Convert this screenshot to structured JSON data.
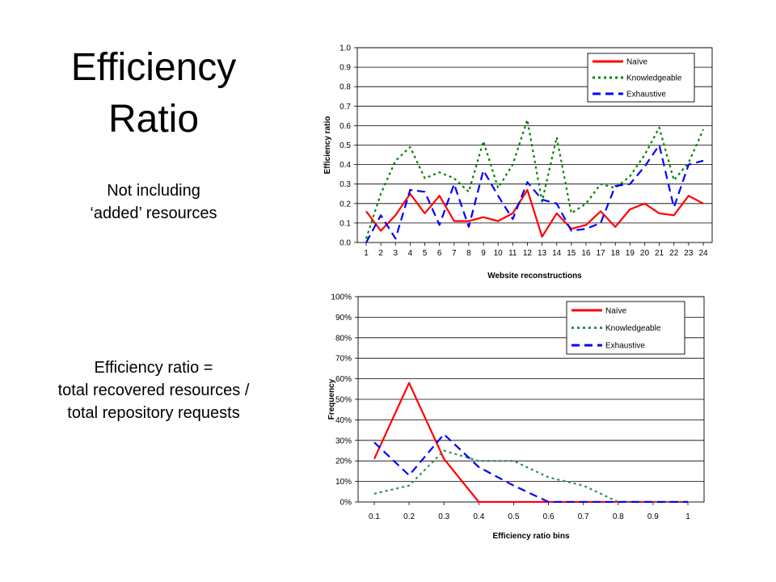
{
  "slide": {
    "title_lines": [
      "Efficiency",
      "Ratio"
    ],
    "note1_lines": [
      "Not including",
      "‘added’ resources"
    ],
    "note2_lines": [
      "Efficiency ratio =",
      "total recovered resources /",
      "total repository requests"
    ]
  },
  "chart_data": [
    {
      "type": "line",
      "title": "",
      "xlabel": "Website reconstructions",
      "ylabel": "Efficiency ratio",
      "categories": [
        "1",
        "2",
        "3",
        "4",
        "5",
        "6",
        "7",
        "8",
        "9",
        "10",
        "11",
        "12",
        "13",
        "14",
        "15",
        "16",
        "17",
        "18",
        "19",
        "20",
        "21",
        "22",
        "23",
        "24"
      ],
      "ylim": [
        0,
        1.0
      ],
      "yticks": [
        "0.0",
        "0.1",
        "0.2",
        "0.3",
        "0.4",
        "0.5",
        "0.6",
        "0.7",
        "0.8",
        "0.9",
        "1.0"
      ],
      "grid": true,
      "legend": "top-right",
      "series": [
        {
          "name": "Naïve",
          "color": "#ff0000",
          "dash": "solid",
          "values": [
            0.16,
            0.06,
            0.14,
            0.25,
            0.15,
            0.24,
            0.11,
            0.11,
            0.13,
            0.11,
            0.15,
            0.27,
            0.03,
            0.15,
            0.07,
            0.09,
            0.16,
            0.08,
            0.17,
            0.2,
            0.15,
            0.14,
            0.24,
            0.2
          ]
        },
        {
          "name": "Knowledgeable",
          "color": "#008000",
          "dash": "dot",
          "values": [
            0.02,
            0.25,
            0.42,
            0.49,
            0.33,
            0.36,
            0.33,
            0.26,
            0.52,
            0.28,
            0.4,
            0.63,
            0.21,
            0.54,
            0.15,
            0.2,
            0.3,
            0.28,
            0.34,
            0.45,
            0.59,
            0.32,
            0.41,
            0.58
          ]
        },
        {
          "name": "Exhaustive",
          "color": "#0000ff",
          "dash": "dash",
          "values": [
            0.0,
            0.14,
            0.02,
            0.27,
            0.26,
            0.09,
            0.3,
            0.08,
            0.37,
            0.24,
            0.12,
            0.31,
            0.22,
            0.2,
            0.06,
            0.07,
            0.1,
            0.29,
            0.3,
            0.39,
            0.5,
            0.18,
            0.4,
            0.42
          ]
        }
      ]
    },
    {
      "type": "line",
      "title": "",
      "xlabel": "Efficiency ratio bins",
      "ylabel": "Frequency",
      "categories": [
        "0.1",
        "0.2",
        "0.3",
        "0.4",
        "0.5",
        "0.6",
        "0.7",
        "0.8",
        "0.9",
        "1"
      ],
      "ylim": [
        0,
        100
      ],
      "yticks": [
        "0%",
        "10%",
        "20%",
        "30%",
        "40%",
        "50%",
        "60%",
        "70%",
        "80%",
        "90%",
        "100%"
      ],
      "grid": true,
      "legend": "top-right",
      "series": [
        {
          "name": "Naïve",
          "color": "#ff0000",
          "dash": "solid",
          "values": [
            21,
            58,
            21,
            0,
            0,
            0,
            0,
            0,
            0,
            0
          ]
        },
        {
          "name": "Knowledgeable",
          "color": "#2e8b57",
          "dash": "dot",
          "values": [
            4,
            8,
            25,
            20,
            20,
            12,
            8,
            0,
            0,
            0
          ]
        },
        {
          "name": "Exhaustive",
          "color": "#0000ff",
          "dash": "dash",
          "values": [
            29,
            13,
            33,
            17,
            8,
            0,
            0,
            0,
            0,
            0
          ]
        }
      ]
    }
  ]
}
